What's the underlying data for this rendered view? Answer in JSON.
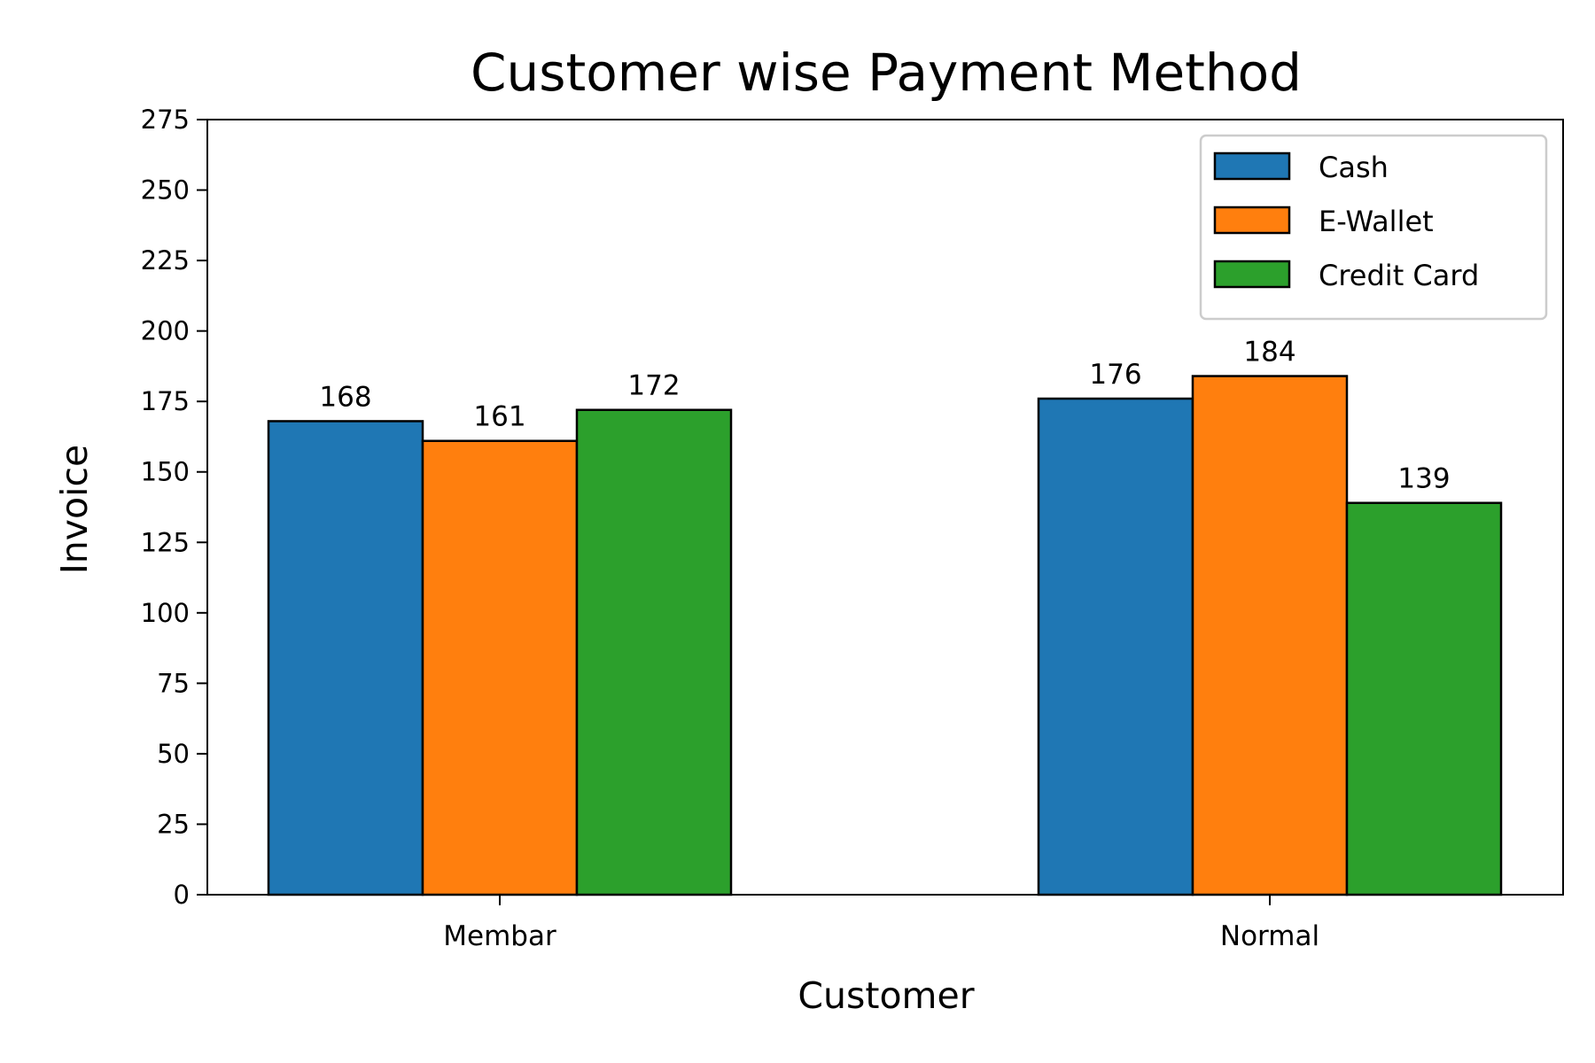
{
  "chart_data": {
    "type": "bar",
    "title": "Customer wise Payment Method",
    "xlabel": "Customer",
    "ylabel": "Invoice",
    "categories": [
      "Membar",
      "Normal"
    ],
    "series": [
      {
        "name": "Cash",
        "values": [
          168,
          176
        ],
        "color": "#1f77b4"
      },
      {
        "name": "E-Wallet",
        "values": [
          161,
          184
        ],
        "color": "#ff7f0e"
      },
      {
        "name": "Credit Card",
        "values": [
          172,
          139
        ],
        "color": "#2ca02c"
      }
    ],
    "ylim": [
      0,
      275
    ],
    "yticks": [
      0,
      25,
      50,
      75,
      100,
      125,
      150,
      175,
      200,
      225,
      250,
      275
    ],
    "grid": false,
    "legend_position": "top-right",
    "show_value_labels": true
  }
}
